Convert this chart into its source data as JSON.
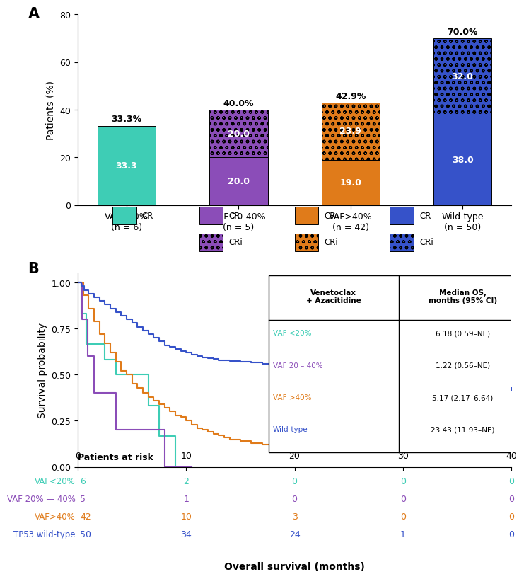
{
  "panel_a": {
    "categories": [
      "VAF<20%\n(n = 6)",
      "VAF 20-40%\n(n = 5)",
      "VAF>40%\n(n = 42)",
      "Wild-type\n(n = 50)"
    ],
    "cr_values": [
      33.3,
      20.0,
      19.0,
      38.0
    ],
    "cri_values": [
      0.0,
      20.0,
      23.9,
      32.0
    ],
    "total_labels": [
      "33.3%",
      "40.0%",
      "42.9%",
      "70.0%"
    ],
    "cr_colors": [
      "#3ecdb5",
      "#8b4db8",
      "#e07b1a",
      "#3652c9"
    ],
    "cri_colors": [
      "#8b4db8",
      "#8b4db8",
      "#e07b1a",
      "#3652c9"
    ],
    "ylabel": "Patients (%)",
    "ylim": [
      0,
      80
    ],
    "yticks": [
      0,
      20,
      40,
      60,
      80
    ]
  },
  "panel_b": {
    "xlabel": "Overall survival (months)",
    "ylabel": "Survival probability",
    "xlim": [
      0,
      40
    ],
    "ylim": [
      -0.02,
      1.05
    ],
    "xticks": [
      0,
      10,
      20,
      30,
      40
    ],
    "yticks": [
      0.0,
      0.25,
      0.5,
      0.75,
      1.0
    ],
    "colors": {
      "vaf_lt20": "#3ecdb5",
      "vaf_20_40": "#8b4db8",
      "vaf_gt40": "#e07b1a",
      "wildtype": "#3652c9"
    },
    "table_rows": [
      [
        "VAF <20%",
        "6.18 (0.59–NE)"
      ],
      [
        "VAF 20 – 40%",
        "1.22 (0.56–NE)"
      ],
      [
        "VAF >40%",
        "5.17 (2.17–6.64)"
      ],
      [
        "Wild-type",
        "23.43 (11.93–NE)"
      ]
    ],
    "at_risk_label": "Patients at risk",
    "at_risk_rows": [
      {
        "label": "VAF<20%",
        "n": "6",
        "color": "#3ecdb5",
        "values": [
          2,
          0,
          0,
          0
        ]
      },
      {
        "label": "VAF 20% — 40%",
        "n": "5",
        "color": "#8b4db8",
        "values": [
          1,
          0,
          0,
          0
        ]
      },
      {
        "label": "VAF>40%",
        "n": "42",
        "color": "#e07b1a",
        "values": [
          10,
          3,
          0,
          0
        ]
      },
      {
        "label": "TP53 wild-type",
        "n": "50",
        "color": "#3652c9",
        "values": [
          34,
          24,
          1,
          0
        ]
      }
    ],
    "at_risk_timepoints": [
      0,
      10,
      20,
      30,
      40
    ],
    "vaf_lt20_times": [
      0,
      0.3,
      0.8,
      1.5,
      2.5,
      3.5,
      5.0,
      6.5,
      7.5,
      9.0,
      10.5
    ],
    "vaf_lt20_surv": [
      1.0,
      0.833,
      0.667,
      0.667,
      0.583,
      0.5,
      0.5,
      0.333,
      0.167,
      0.0,
      0.0
    ],
    "vaf_lt20_ct": [],
    "vaf_lt20_cs": [],
    "vaf_20_40_times": [
      0,
      0.4,
      0.9,
      1.5,
      2.0,
      3.5,
      5.0,
      6.5,
      8.0,
      10.5
    ],
    "vaf_20_40_surv": [
      1.0,
      0.8,
      0.6,
      0.4,
      0.4,
      0.2,
      0.2,
      0.2,
      0.0,
      0.0
    ],
    "vaf_20_40_ct": [],
    "vaf_20_40_cs": [],
    "vaf_gt40_times": [
      0,
      0.5,
      1.0,
      1.5,
      2.0,
      2.5,
      3.0,
      3.5,
      4.0,
      4.5,
      5.0,
      5.5,
      6.0,
      6.5,
      7.0,
      7.5,
      8.0,
      8.5,
      9.0,
      9.5,
      10.0,
      10.5,
      11.0,
      11.5,
      12.0,
      12.5,
      13.0,
      13.5,
      14.0,
      15.0,
      16.0,
      17.0,
      18.0,
      19.0,
      20.0,
      21.0,
      22.0,
      23.0,
      24.0,
      25.0,
      26.0,
      27.0,
      28.0
    ],
    "vaf_gt40_surv": [
      1.0,
      0.93,
      0.86,
      0.79,
      0.72,
      0.67,
      0.62,
      0.57,
      0.52,
      0.5,
      0.45,
      0.43,
      0.4,
      0.38,
      0.36,
      0.34,
      0.32,
      0.3,
      0.28,
      0.27,
      0.25,
      0.23,
      0.21,
      0.2,
      0.19,
      0.18,
      0.17,
      0.16,
      0.15,
      0.14,
      0.13,
      0.12,
      0.115,
      0.11,
      0.105,
      0.105,
      0.105,
      0.105,
      0.105,
      0.105,
      0.105,
      0.105,
      0.105
    ],
    "vaf_gt40_ct": [
      22.5,
      25.5,
      27.5
    ],
    "vaf_gt40_cs": [
      0.105,
      0.105,
      0.105
    ],
    "wildtype_times": [
      0,
      0.3,
      0.6,
      1.0,
      1.5,
      2.0,
      2.5,
      3.0,
      3.5,
      4.0,
      4.5,
      5.0,
      5.5,
      6.0,
      6.5,
      7.0,
      7.5,
      8.0,
      8.5,
      9.0,
      9.5,
      10.0,
      10.5,
      11.0,
      11.5,
      12.0,
      12.5,
      13.0,
      14.0,
      15.0,
      16.0,
      17.0,
      18.0,
      19.0,
      20.0,
      21.0,
      22.0,
      22.5,
      23.0,
      23.5,
      24.0,
      25.0,
      26.0,
      27.0,
      28.0,
      29.0,
      30.0,
      31.0,
      32.0,
      33.0,
      34.0,
      35.0,
      36.0,
      37.0,
      38.0,
      39.0,
      40.0
    ],
    "wildtype_surv": [
      1.0,
      0.98,
      0.96,
      0.94,
      0.92,
      0.9,
      0.88,
      0.86,
      0.84,
      0.82,
      0.8,
      0.78,
      0.76,
      0.74,
      0.72,
      0.7,
      0.68,
      0.66,
      0.65,
      0.64,
      0.63,
      0.62,
      0.61,
      0.6,
      0.595,
      0.59,
      0.585,
      0.58,
      0.575,
      0.57,
      0.565,
      0.56,
      0.555,
      0.55,
      0.545,
      0.54,
      0.535,
      0.53,
      0.525,
      0.52,
      0.51,
      0.5,
      0.48,
      0.465,
      0.455,
      0.445,
      0.44,
      0.435,
      0.43,
      0.425,
      0.42,
      0.42,
      0.42,
      0.42,
      0.42,
      0.42,
      0.42
    ],
    "wildtype_ct": [
      21.5,
      22.0,
      22.5,
      23.0,
      23.5,
      24.0,
      25.0,
      26.0,
      27.0,
      28.0,
      29.0,
      30.0,
      31.0,
      32.0,
      33.0,
      34.0,
      35.0,
      36.0,
      37.0,
      38.0,
      40.0
    ],
    "wildtype_cs": [
      0.54,
      0.535,
      0.53,
      0.525,
      0.52,
      0.51,
      0.5,
      0.48,
      0.465,
      0.455,
      0.445,
      0.44,
      0.435,
      0.43,
      0.425,
      0.42,
      0.42,
      0.42,
      0.42,
      0.42,
      0.42
    ]
  },
  "background_color": "#ffffff"
}
